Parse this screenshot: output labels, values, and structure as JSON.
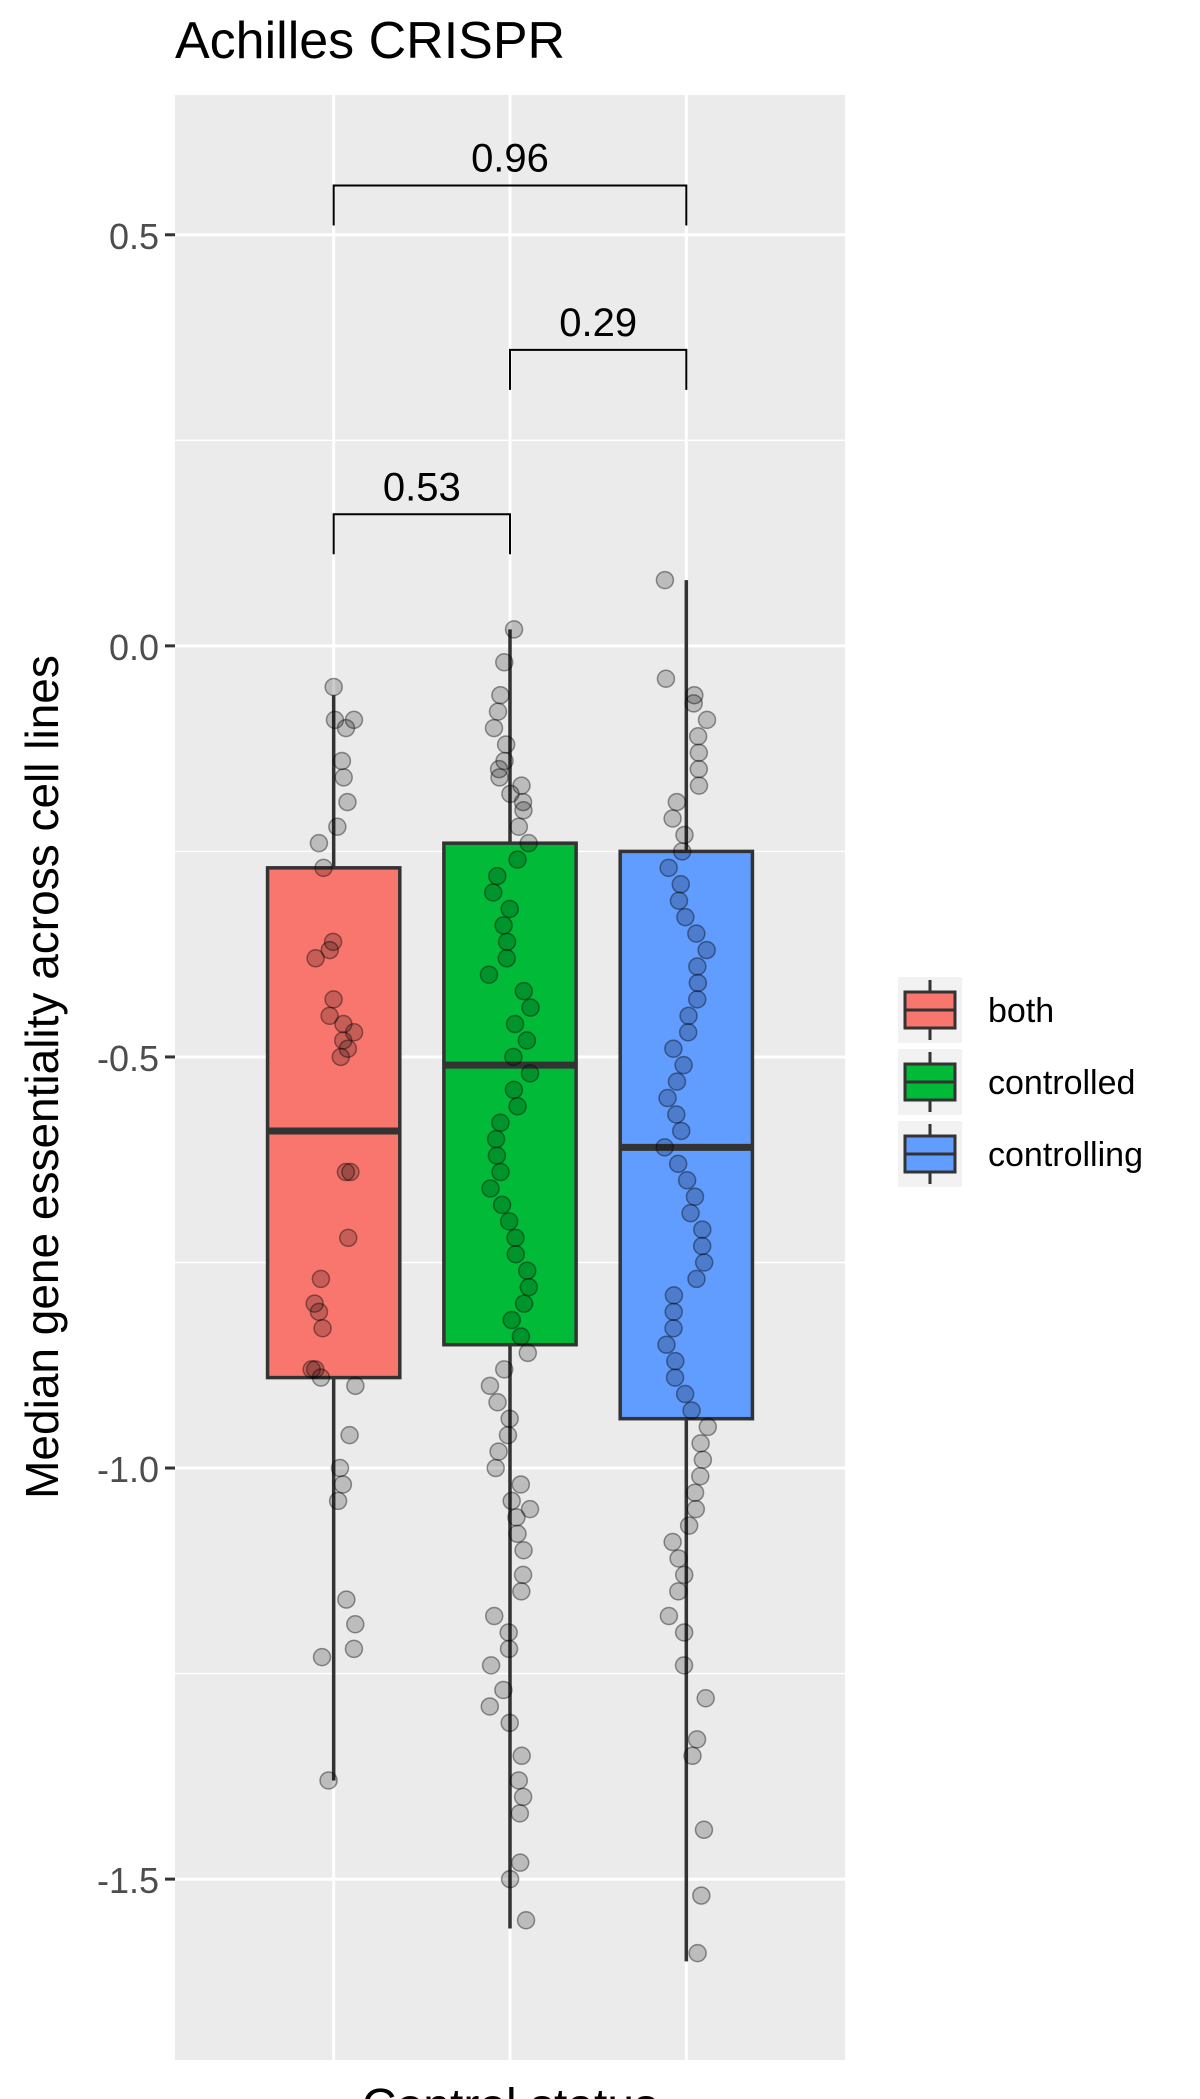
{
  "chart_data": {
    "type": "box",
    "title": "Achilles CRISPR",
    "xlabel": "Control status",
    "ylabel": "Median gene essentiality across cell lines",
    "ylim": [
      -1.72,
      0.67
    ],
    "yticks": [
      0.5,
      0.0,
      -0.5,
      -1.0,
      -1.5
    ],
    "ytick_labels": [
      "0.5",
      "0.0",
      "-0.5",
      "-1.0",
      "-1.5"
    ],
    "grid": true,
    "legend": {
      "position": "right",
      "title": ""
    },
    "groups": [
      {
        "name": "both",
        "color": "#F8766D",
        "whisker_low": -1.38,
        "q1": -0.89,
        "median": -0.59,
        "q3": -0.27,
        "whisker_high": -0.06,
        "points": [
          -0.05,
          -0.09,
          -0.09,
          -0.1,
          -0.14,
          -0.16,
          -0.19,
          -0.22,
          -0.24,
          -0.27,
          -0.36,
          -0.37,
          -0.38,
          -0.43,
          -0.45,
          -0.46,
          -0.47,
          -0.48,
          -0.49,
          -0.5,
          -0.64,
          -0.64,
          -0.72,
          -0.77,
          -0.8,
          -0.81,
          -0.83,
          -0.88,
          -0.88,
          -0.89,
          -0.9,
          -0.96,
          -1.0,
          -1.02,
          -1.04,
          -1.16,
          -1.19,
          -1.22,
          -1.23,
          -1.38
        ]
      },
      {
        "name": "controlled",
        "color": "#00BA38",
        "whisker_low": -1.56,
        "q1": -0.85,
        "median": -0.51,
        "q3": -0.24,
        "whisker_high": 0.02,
        "points": [
          0.02,
          -0.02,
          -0.06,
          -0.08,
          -0.1,
          -0.12,
          -0.14,
          -0.15,
          -0.16,
          -0.17,
          -0.18,
          -0.19,
          -0.2,
          -0.22,
          -0.24,
          -0.26,
          -0.28,
          -0.3,
          -0.32,
          -0.34,
          -0.36,
          -0.38,
          -0.4,
          -0.42,
          -0.44,
          -0.46,
          -0.48,
          -0.5,
          -0.52,
          -0.54,
          -0.56,
          -0.58,
          -0.6,
          -0.62,
          -0.64,
          -0.66,
          -0.68,
          -0.7,
          -0.72,
          -0.74,
          -0.76,
          -0.78,
          -0.8,
          -0.82,
          -0.84,
          -0.86,
          -0.88,
          -0.9,
          -0.92,
          -0.94,
          -0.96,
          -0.98,
          -1.0,
          -1.02,
          -1.04,
          -1.05,
          -1.06,
          -1.08,
          -1.1,
          -1.13,
          -1.15,
          -1.18,
          -1.2,
          -1.22,
          -1.24,
          -1.27,
          -1.29,
          -1.31,
          -1.35,
          -1.38,
          -1.4,
          -1.42,
          -1.48,
          -1.5,
          -1.55
        ]
      },
      {
        "name": "controlling",
        "color": "#619CFF",
        "whisker_low": -1.6,
        "q1": -0.94,
        "median": -0.61,
        "q3": -0.25,
        "whisker_high": 0.08,
        "points": [
          0.08,
          -0.04,
          -0.06,
          -0.07,
          -0.09,
          -0.11,
          -0.13,
          -0.15,
          -0.17,
          -0.19,
          -0.21,
          -0.23,
          -0.25,
          -0.27,
          -0.29,
          -0.31,
          -0.33,
          -0.35,
          -0.37,
          -0.39,
          -0.41,
          -0.43,
          -0.45,
          -0.47,
          -0.49,
          -0.51,
          -0.53,
          -0.55,
          -0.57,
          -0.59,
          -0.61,
          -0.63,
          -0.65,
          -0.67,
          -0.69,
          -0.71,
          -0.73,
          -0.75,
          -0.77,
          -0.79,
          -0.81,
          -0.83,
          -0.85,
          -0.87,
          -0.89,
          -0.91,
          -0.93,
          -0.95,
          -0.97,
          -0.99,
          -1.01,
          -1.03,
          -1.05,
          -1.07,
          -1.09,
          -1.11,
          -1.13,
          -1.15,
          -1.18,
          -1.2,
          -1.24,
          -1.28,
          -1.33,
          -1.35,
          -1.44,
          -1.52,
          -1.59
        ]
      }
    ],
    "comparisons": [
      {
        "from": "both",
        "to": "controlling",
        "label": "0.96",
        "y": 0.56
      },
      {
        "from": "controlled",
        "to": "controlling",
        "label": "0.29",
        "y": 0.36
      },
      {
        "from": "both",
        "to": "controlled",
        "label": "0.53",
        "y": 0.16
      }
    ]
  }
}
